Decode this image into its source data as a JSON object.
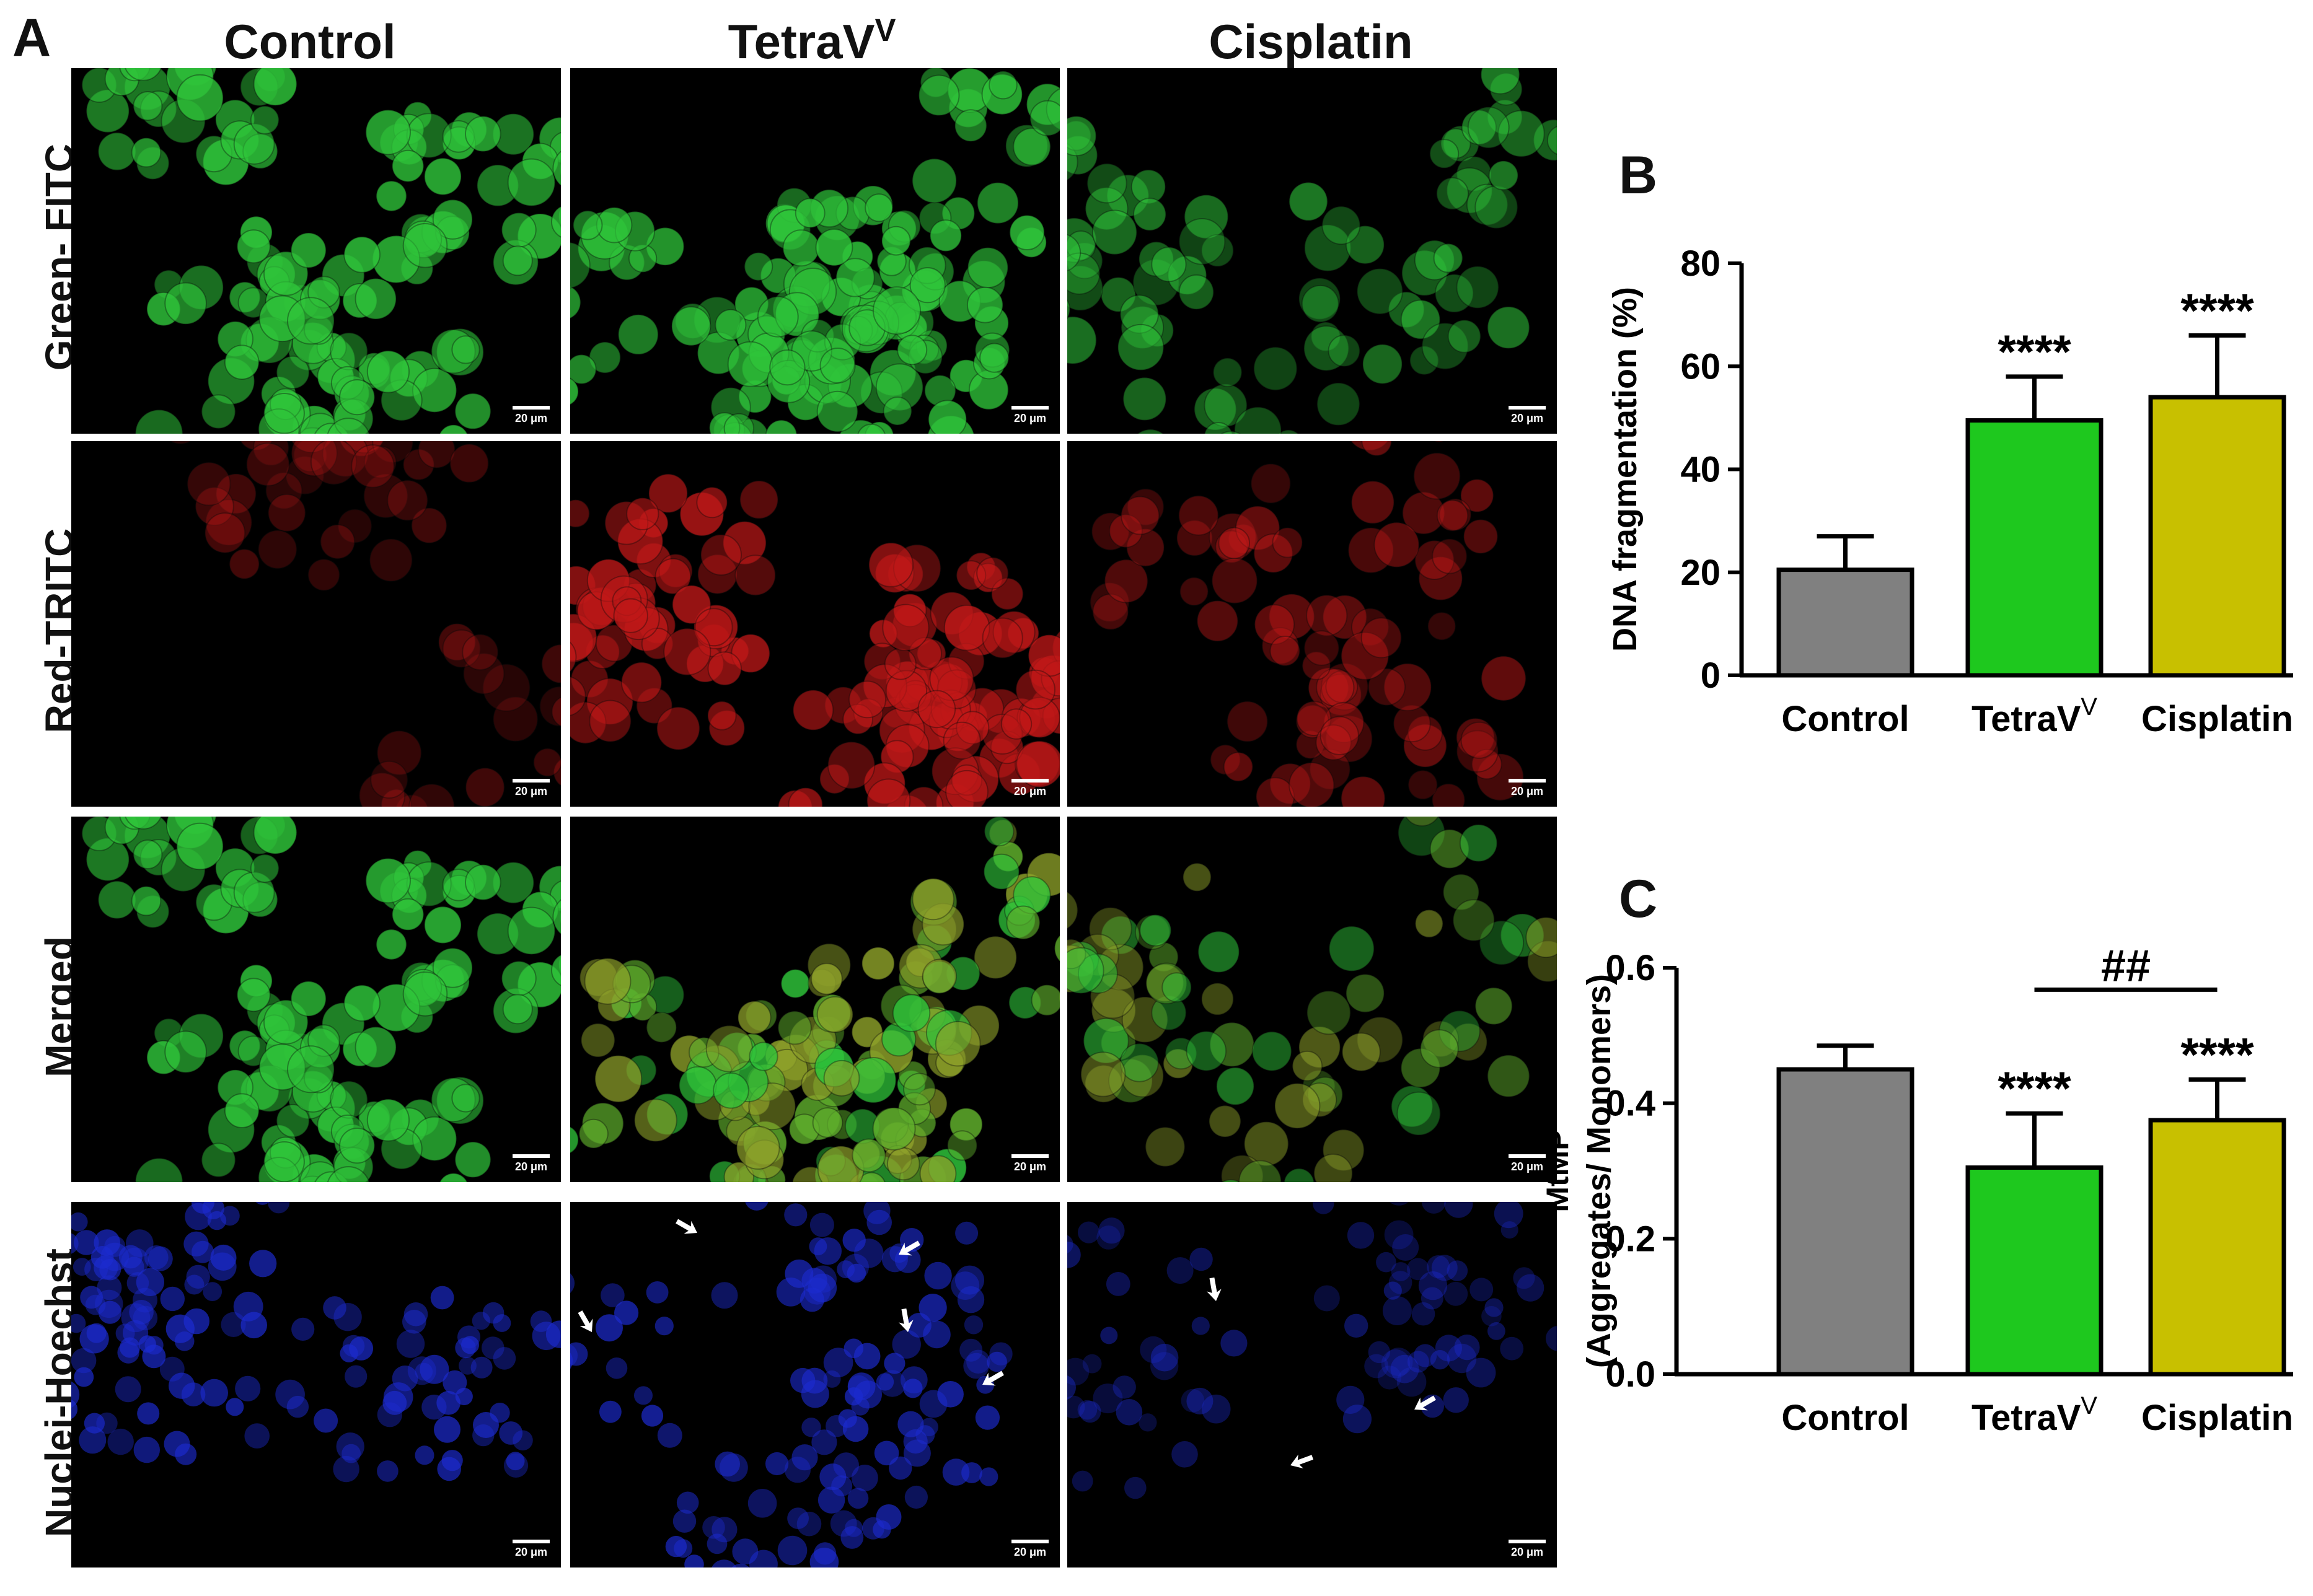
{
  "panel_a": {
    "letter": "A",
    "columns": [
      {
        "label": "Control",
        "sup": ""
      },
      {
        "label": "TetraV",
        "sup": "V"
      },
      {
        "label": "Cisplatin",
        "sup": ""
      }
    ],
    "rows": [
      "Green- FITC",
      "Red-TRITC",
      "Merged",
      "Nuclei-Hoechst"
    ],
    "scale_bar": "20 μm",
    "colors": {
      "green": "#2fc43a",
      "red": "#c01818",
      "blue": "#1c2bd0",
      "arrow": "#ffffff"
    }
  },
  "panel_b": {
    "letter": "B"
  },
  "panel_c": {
    "letter": "C"
  },
  "chart_data": [
    {
      "type": "bar",
      "panel": "B",
      "categories": [
        "Control",
        "TetraV",
        "Cisplatin"
      ],
      "category_superscripts": [
        "",
        "V",
        ""
      ],
      "values": [
        20.5,
        49.5,
        54
      ],
      "errors": [
        6.5,
        8.5,
        12
      ],
      "colors": [
        "#808080",
        "#1ec81e",
        "#c8c000"
      ],
      "ylabel": "DNA fragmentation (%)",
      "ylim": [
        0,
        80
      ],
      "yticks": [
        "0",
        "20",
        "40",
        "60",
        "80"
      ],
      "annotations": [
        "",
        "****",
        "****"
      ],
      "grid": false
    },
    {
      "type": "bar",
      "panel": "C",
      "categories": [
        "Control",
        "TetraV",
        "Cisplatin"
      ],
      "category_superscripts": [
        "",
        "V",
        ""
      ],
      "values": [
        0.45,
        0.305,
        0.375
      ],
      "errors": [
        0.035,
        0.08,
        0.06
      ],
      "colors": [
        "#808080",
        "#1ec81e",
        "#c8c000"
      ],
      "ylabel": "MtMP",
      "ylabel2": "(Aggregates/ Monomers)",
      "ylim": [
        0,
        0.6
      ],
      "yticks": [
        "0.0",
        "0.2",
        "0.4",
        "0.6"
      ],
      "annotations": [
        "",
        "****",
        "****"
      ],
      "bracket_label": "##",
      "bracket_between": [
        1,
        2
      ],
      "grid": false
    }
  ]
}
